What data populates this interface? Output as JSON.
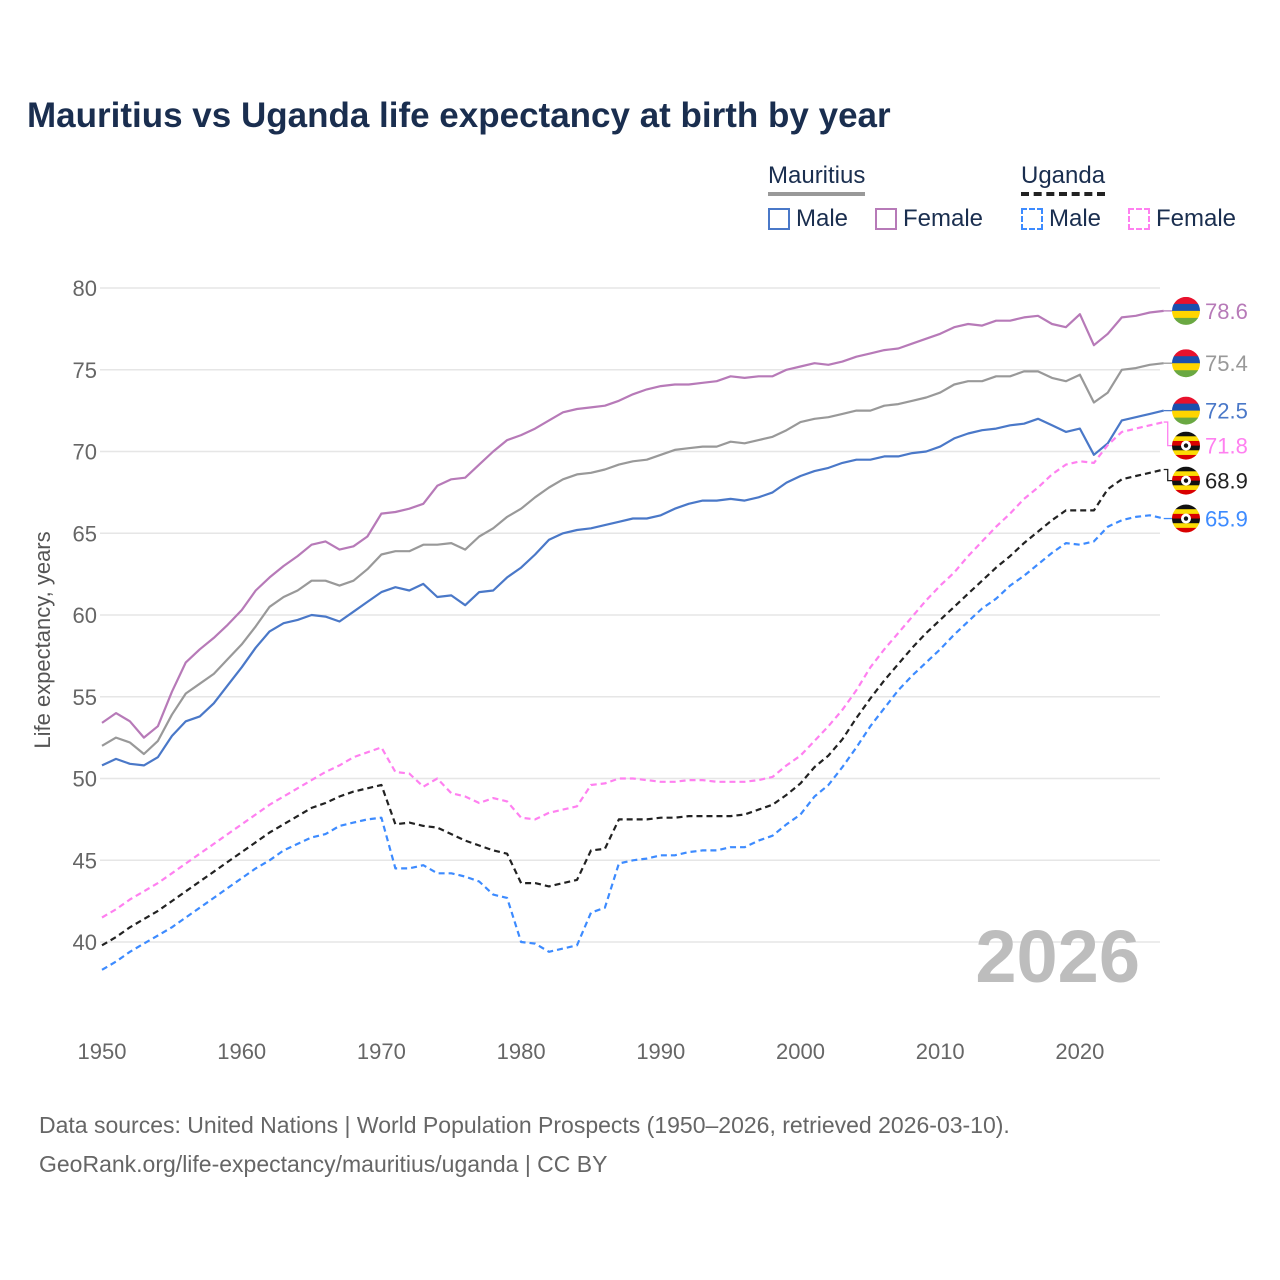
{
  "title": "Mauritius vs Uganda life expectancy at birth by year",
  "legend": {
    "groups": [
      {
        "name": "Mauritius",
        "items": [
          "Male",
          "Female"
        ]
      },
      {
        "name": "Uganda",
        "items": [
          "Male",
          "Female"
        ]
      }
    ]
  },
  "year_watermark": "2026",
  "source": {
    "line1": "Data sources: United Nations | World Population Prospects (1950–2026, retrieved 2026-03-10).",
    "line2": "GeoRank.org/life-expectancy/mauritius/uganda | CC BY"
  },
  "chart_data": {
    "type": "line",
    "title": "Mauritius vs Uganda life expectancy at birth by year",
    "xlabel": "",
    "ylabel": "Life expectancy, years",
    "xlim": [
      1950,
      2026
    ],
    "ylim": [
      35,
      82
    ],
    "xticks": [
      1950,
      1960,
      1970,
      1980,
      1990,
      2000,
      2010,
      2020
    ],
    "yticks": [
      40,
      45,
      50,
      55,
      60,
      65,
      70,
      75,
      80
    ],
    "grid": true,
    "legend_position": "top-right",
    "x_start": 1950,
    "series": [
      {
        "name": "Mauritius Female",
        "country": "Mauritius",
        "flag": "mauritius",
        "color": "#b77ab8",
        "dashed": false,
        "end_label": "78.6",
        "values": [
          53.4,
          54.0,
          53.5,
          52.5,
          53.2,
          55.3,
          57.1,
          57.9,
          58.6,
          59.4,
          60.3,
          61.5,
          62.3,
          63.0,
          63.6,
          64.3,
          64.5,
          64.0,
          64.2,
          64.8,
          66.2,
          66.3,
          66.5,
          66.8,
          67.9,
          68.3,
          68.4,
          69.2,
          70.0,
          70.7,
          71.0,
          71.4,
          71.9,
          72.4,
          72.6,
          72.7,
          72.8,
          73.1,
          73.5,
          73.8,
          74.0,
          74.1,
          74.1,
          74.2,
          74.3,
          74.6,
          74.5,
          74.6,
          74.6,
          75.0,
          75.2,
          75.4,
          75.3,
          75.5,
          75.8,
          76.0,
          76.2,
          76.3,
          76.6,
          76.9,
          77.2,
          77.6,
          77.8,
          77.7,
          78.0,
          78.0,
          78.2,
          78.3,
          77.8,
          77.6,
          78.4,
          76.5,
          77.2,
          78.2,
          78.3,
          78.5,
          78.6
        ]
      },
      {
        "name": "Mauritius",
        "country": "Mauritius",
        "flag": "mauritius",
        "color": "#999999",
        "dashed": false,
        "end_label": "75.4",
        "values": [
          52.0,
          52.5,
          52.2,
          51.5,
          52.3,
          53.9,
          55.2,
          55.8,
          56.4,
          57.3,
          58.2,
          59.3,
          60.5,
          61.1,
          61.5,
          62.1,
          62.1,
          61.8,
          62.1,
          62.8,
          63.7,
          63.9,
          63.9,
          64.3,
          64.3,
          64.4,
          64.0,
          64.8,
          65.3,
          66.0,
          66.5,
          67.2,
          67.8,
          68.3,
          68.6,
          68.7,
          68.9,
          69.2,
          69.4,
          69.5,
          69.8,
          70.1,
          70.2,
          70.3,
          70.3,
          70.6,
          70.5,
          70.7,
          70.9,
          71.3,
          71.8,
          72.0,
          72.1,
          72.3,
          72.5,
          72.5,
          72.8,
          72.9,
          73.1,
          73.3,
          73.6,
          74.1,
          74.3,
          74.3,
          74.6,
          74.6,
          74.9,
          74.9,
          74.5,
          74.3,
          74.7,
          73.0,
          73.6,
          75.0,
          75.1,
          75.3,
          75.4
        ]
      },
      {
        "name": "Mauritius Male",
        "country": "Mauritius",
        "flag": "mauritius",
        "color": "#4a78c8",
        "dashed": false,
        "end_label": "72.5",
        "values": [
          50.8,
          51.2,
          50.9,
          50.8,
          51.3,
          52.6,
          53.5,
          53.8,
          54.6,
          55.7,
          56.8,
          58.0,
          59.0,
          59.5,
          59.7,
          60.0,
          59.9,
          59.6,
          60.2,
          60.8,
          61.4,
          61.7,
          61.5,
          61.9,
          61.1,
          61.2,
          60.6,
          61.4,
          61.5,
          62.3,
          62.9,
          63.7,
          64.6,
          65.0,
          65.2,
          65.3,
          65.5,
          65.7,
          65.9,
          65.9,
          66.1,
          66.5,
          66.8,
          67.0,
          67.0,
          67.1,
          67.0,
          67.2,
          67.5,
          68.1,
          68.5,
          68.8,
          69.0,
          69.3,
          69.5,
          69.5,
          69.7,
          69.7,
          69.9,
          70.0,
          70.3,
          70.8,
          71.1,
          71.3,
          71.4,
          71.6,
          71.7,
          72.0,
          71.6,
          71.2,
          71.4,
          69.8,
          70.5,
          71.9,
          72.1,
          72.3,
          72.5
        ]
      },
      {
        "name": "Uganda Female",
        "country": "Uganda",
        "flag": "uganda",
        "color": "#ff80f0",
        "dashed": true,
        "end_label": "71.8",
        "values": [
          41.5,
          42.0,
          42.6,
          43.1,
          43.6,
          44.2,
          44.8,
          45.4,
          46.0,
          46.6,
          47.2,
          47.8,
          48.4,
          48.9,
          49.4,
          49.9,
          50.4,
          50.8,
          51.3,
          51.6,
          51.9,
          50.4,
          50.3,
          49.5,
          50.0,
          49.1,
          48.9,
          48.5,
          48.8,
          48.6,
          47.6,
          47.5,
          47.9,
          48.1,
          48.3,
          49.6,
          49.7,
          50.0,
          50.0,
          49.9,
          49.8,
          49.8,
          49.9,
          49.9,
          49.8,
          49.8,
          49.8,
          49.9,
          50.1,
          50.8,
          51.4,
          52.3,
          53.2,
          54.2,
          55.4,
          56.8,
          57.9,
          58.9,
          59.9,
          60.9,
          61.8,
          62.6,
          63.6,
          64.5,
          65.4,
          66.2,
          67.1,
          67.8,
          68.6,
          69.2,
          69.4,
          69.3,
          70.4,
          71.2,
          71.4,
          71.6,
          71.8
        ]
      },
      {
        "name": "Uganda",
        "country": "Uganda",
        "flag": "uganda",
        "color": "#222222",
        "dashed": true,
        "end_label": "68.9",
        "values": [
          39.8,
          40.3,
          40.9,
          41.4,
          41.9,
          42.5,
          43.1,
          43.7,
          44.3,
          44.9,
          45.5,
          46.1,
          46.7,
          47.2,
          47.7,
          48.2,
          48.5,
          48.9,
          49.2,
          49.4,
          49.6,
          47.2,
          47.3,
          47.1,
          47.0,
          46.6,
          46.2,
          45.9,
          45.6,
          45.4,
          43.6,
          43.6,
          43.4,
          43.6,
          43.8,
          45.6,
          45.7,
          47.5,
          47.5,
          47.5,
          47.6,
          47.6,
          47.7,
          47.7,
          47.7,
          47.7,
          47.8,
          48.1,
          48.4,
          49.0,
          49.7,
          50.7,
          51.4,
          52.4,
          53.7,
          54.9,
          56.0,
          57.0,
          58.0,
          58.9,
          59.7,
          60.5,
          61.3,
          62.1,
          62.9,
          63.6,
          64.4,
          65.1,
          65.8,
          66.4,
          66.4,
          66.4,
          67.7,
          68.3,
          68.5,
          68.7,
          68.9
        ]
      },
      {
        "name": "Uganda Male",
        "country": "Uganda",
        "flag": "uganda",
        "color": "#3d8bff",
        "dashed": true,
        "end_label": "65.9",
        "values": [
          38.3,
          38.8,
          39.4,
          39.9,
          40.4,
          40.9,
          41.5,
          42.1,
          42.7,
          43.3,
          43.9,
          44.5,
          45.0,
          45.6,
          46.0,
          46.4,
          46.6,
          47.1,
          47.3,
          47.5,
          47.6,
          44.5,
          44.5,
          44.7,
          44.2,
          44.2,
          44.0,
          43.7,
          42.9,
          42.7,
          40.0,
          39.9,
          39.4,
          39.6,
          39.8,
          41.8,
          42.1,
          44.8,
          45.0,
          45.1,
          45.3,
          45.3,
          45.5,
          45.6,
          45.6,
          45.8,
          45.8,
          46.2,
          46.5,
          47.2,
          47.8,
          48.9,
          49.6,
          50.7,
          51.9,
          53.2,
          54.3,
          55.4,
          56.3,
          57.1,
          57.9,
          58.8,
          59.6,
          60.4,
          61.0,
          61.8,
          62.4,
          63.1,
          63.8,
          64.4,
          64.3,
          64.5,
          65.4,
          65.8,
          66.0,
          66.1,
          65.9
        ]
      }
    ]
  }
}
